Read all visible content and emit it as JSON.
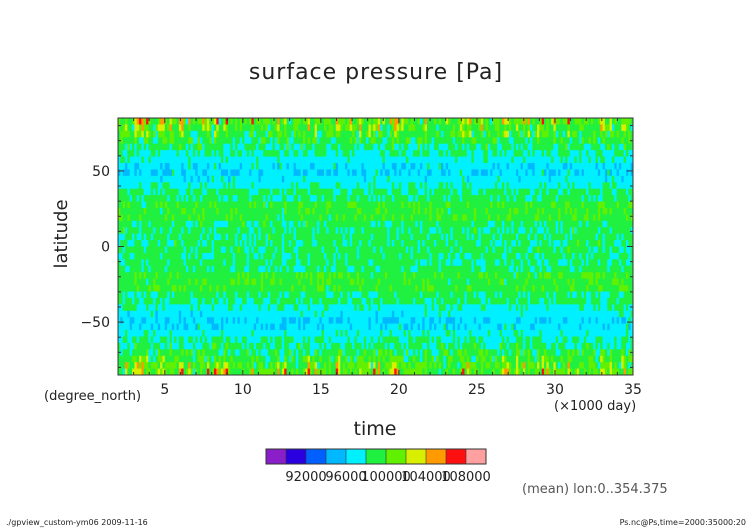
{
  "chart_data": {
    "type": "heatmap",
    "title": "surface pressure [Pa]",
    "xlabel": "time",
    "ylabel": "latitude",
    "x_unit": "(×1000 day)",
    "y_unit": "(degree_north)",
    "xlim": [
      2,
      35
    ],
    "ylim": [
      -85,
      85
    ],
    "x_ticks": [
      "5",
      "10",
      "15",
      "20",
      "25",
      "30",
      "35"
    ],
    "y_ticks": [
      "50",
      "0",
      "−50"
    ],
    "colorbar": {
      "levels": [
        90000,
        92000,
        94000,
        96000,
        98000,
        100000,
        102000,
        104000,
        106000,
        108000,
        110000
      ],
      "tick_labels": [
        "92000",
        "96000",
        "100000",
        "104000",
        "108000"
      ],
      "colors": [
        "#8a1ec8",
        "#2a00e0",
        "#0060ff",
        "#00b8ff",
        "#00f0ff",
        "#20f040",
        "#60f000",
        "#d8f000",
        "#ff9a00",
        "#ff1010",
        "#ffa0a0"
      ]
    },
    "description_mean_field": "green ~100000 Pa near equator and mid-latitudes, cyan/yellow bands near 50°, red/orange bursts near poles"
  },
  "annotation": "(mean) lon:0..354.375",
  "footer": {
    "left": "./gpview_custom-ym06   2009-11-16",
    "right": "Ps.nc@Ps,time=2000:35000:20"
  }
}
